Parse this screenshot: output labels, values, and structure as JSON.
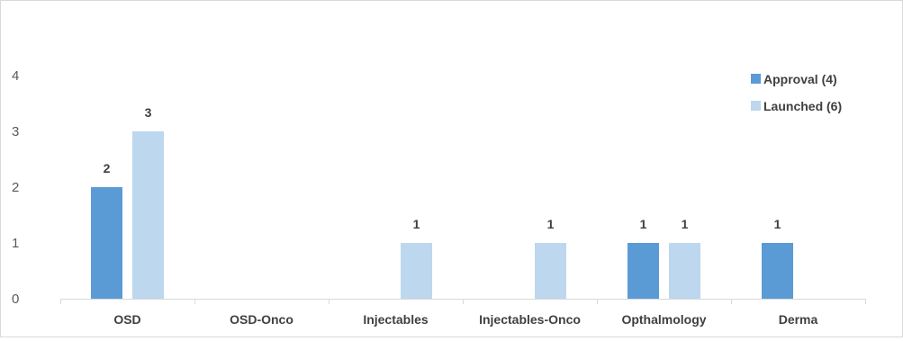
{
  "chart_data": {
    "type": "bar",
    "title": "",
    "xlabel": "",
    "ylabel": "",
    "categories": [
      "OSD",
      "OSD-Onco",
      "Injectables",
      "Injectables-Onco",
      "Opthalmology",
      "Derma"
    ],
    "series": [
      {
        "name": "Approval (4)",
        "color": "#5b9bd5",
        "values": [
          2,
          0,
          0,
          0,
          1,
          1
        ]
      },
      {
        "name": "Launched (6)",
        "color": "#bdd7ee",
        "values": [
          3,
          0,
          1,
          1,
          1,
          0
        ]
      }
    ],
    "ylim": [
      0,
      5
    ],
    "yticks": [
      0,
      1,
      2,
      3,
      4
    ],
    "grid": false,
    "legend_position": "top-right",
    "show_data_labels": true
  }
}
